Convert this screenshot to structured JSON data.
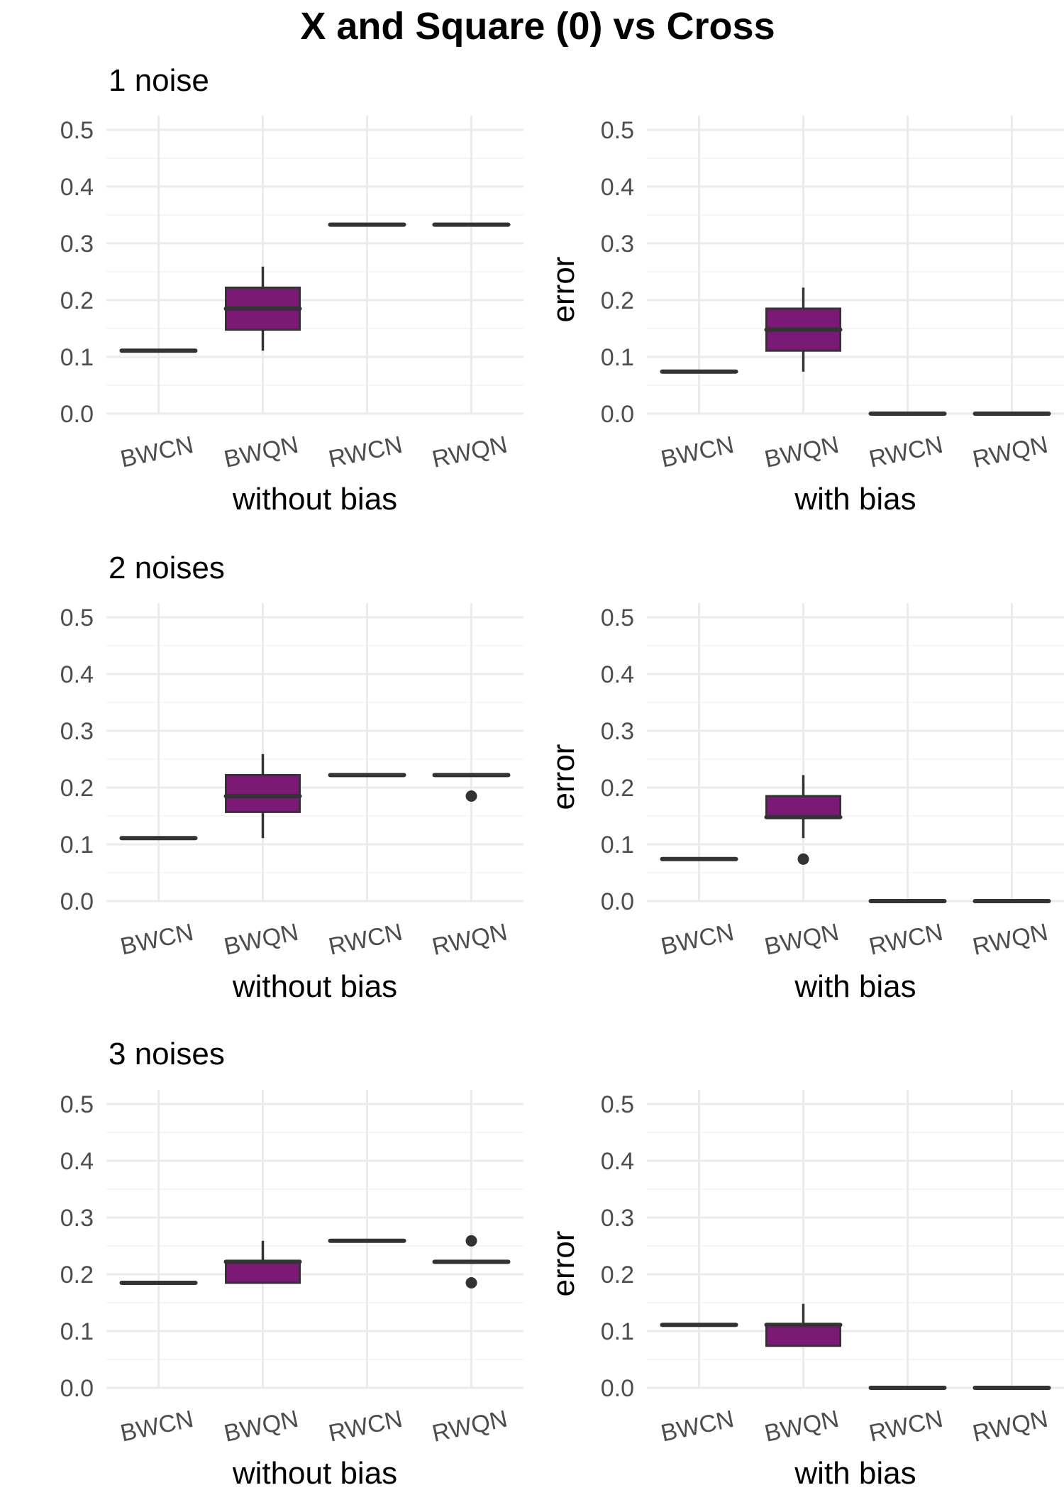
{
  "title": "X and Square (0) vs Cross",
  "colors": {
    "box_fill": "#7b1a74",
    "line": "#333333",
    "grid": "#ebebeb"
  },
  "chart_data": [
    {
      "type": "box",
      "row_title": "1 noise",
      "xlabel": "without bias",
      "ylabel": "",
      "ylim": [
        0,
        0.5
      ],
      "yticks": [
        "0.0",
        "0.1",
        "0.2",
        "0.3",
        "0.4",
        "0.5"
      ],
      "categories": [
        "BWCN",
        "BWQN",
        "RWCN",
        "RWQN"
      ],
      "boxes": [
        {
          "category": "BWCN",
          "min": 0.111,
          "q1": 0.111,
          "median": 0.111,
          "q3": 0.111,
          "max": 0.111,
          "outliers": []
        },
        {
          "category": "BWQN",
          "min": 0.111,
          "q1": 0.148,
          "median": 0.185,
          "q3": 0.222,
          "max": 0.259,
          "outliers": []
        },
        {
          "category": "RWCN",
          "min": 0.333,
          "q1": 0.333,
          "median": 0.333,
          "q3": 0.333,
          "max": 0.333,
          "outliers": []
        },
        {
          "category": "RWQN",
          "min": 0.333,
          "q1": 0.333,
          "median": 0.333,
          "q3": 0.333,
          "max": 0.333,
          "outliers": []
        }
      ]
    },
    {
      "type": "box",
      "row_title": "",
      "xlabel": "with bias",
      "ylabel": "error",
      "ylim": [
        0,
        0.5
      ],
      "yticks": [
        "0.0",
        "0.1",
        "0.2",
        "0.3",
        "0.4",
        "0.5"
      ],
      "categories": [
        "BWCN",
        "BWQN",
        "RWCN",
        "RWQN"
      ],
      "boxes": [
        {
          "category": "BWCN",
          "min": 0.074,
          "q1": 0.074,
          "median": 0.074,
          "q3": 0.074,
          "max": 0.074,
          "outliers": []
        },
        {
          "category": "BWQN",
          "min": 0.074,
          "q1": 0.111,
          "median": 0.148,
          "q3": 0.185,
          "max": 0.222,
          "outliers": []
        },
        {
          "category": "RWCN",
          "min": 0.0,
          "q1": 0.0,
          "median": 0.0,
          "q3": 0.0,
          "max": 0.0,
          "outliers": []
        },
        {
          "category": "RWQN",
          "min": 0.0,
          "q1": 0.0,
          "median": 0.0,
          "q3": 0.0,
          "max": 0.0,
          "outliers": []
        }
      ]
    },
    {
      "type": "box",
      "row_title": "2 noises",
      "xlabel": "without bias",
      "ylabel": "",
      "ylim": [
        0,
        0.5
      ],
      "yticks": [
        "0.0",
        "0.1",
        "0.2",
        "0.3",
        "0.4",
        "0.5"
      ],
      "categories": [
        "BWCN",
        "BWQN",
        "RWCN",
        "RWQN"
      ],
      "boxes": [
        {
          "category": "BWCN",
          "min": 0.111,
          "q1": 0.111,
          "median": 0.111,
          "q3": 0.111,
          "max": 0.111,
          "outliers": []
        },
        {
          "category": "BWQN",
          "min": 0.111,
          "q1": 0.157,
          "median": 0.185,
          "q3": 0.222,
          "max": 0.259,
          "outliers": []
        },
        {
          "category": "RWCN",
          "min": 0.222,
          "q1": 0.222,
          "median": 0.222,
          "q3": 0.222,
          "max": 0.222,
          "outliers": []
        },
        {
          "category": "RWQN",
          "min": 0.222,
          "q1": 0.222,
          "median": 0.222,
          "q3": 0.222,
          "max": 0.222,
          "outliers": [
            0.185
          ]
        }
      ]
    },
    {
      "type": "box",
      "row_title": "",
      "xlabel": "with bias",
      "ylabel": "error",
      "ylim": [
        0,
        0.5
      ],
      "yticks": [
        "0.0",
        "0.1",
        "0.2",
        "0.3",
        "0.4",
        "0.5"
      ],
      "categories": [
        "BWCN",
        "BWQN",
        "RWCN",
        "RWQN"
      ],
      "boxes": [
        {
          "category": "BWCN",
          "min": 0.074,
          "q1": 0.074,
          "median": 0.074,
          "q3": 0.074,
          "max": 0.074,
          "outliers": []
        },
        {
          "category": "BWQN",
          "min": 0.111,
          "q1": 0.148,
          "median": 0.148,
          "q3": 0.185,
          "max": 0.222,
          "outliers": [
            0.074
          ]
        },
        {
          "category": "RWCN",
          "min": 0.0,
          "q1": 0.0,
          "median": 0.0,
          "q3": 0.0,
          "max": 0.0,
          "outliers": []
        },
        {
          "category": "RWQN",
          "min": 0.0,
          "q1": 0.0,
          "median": 0.0,
          "q3": 0.0,
          "max": 0.0,
          "outliers": []
        }
      ]
    },
    {
      "type": "box",
      "row_title": "3 noises",
      "xlabel": "without bias",
      "ylabel": "",
      "ylim": [
        0,
        0.5
      ],
      "yticks": [
        "0.0",
        "0.1",
        "0.2",
        "0.3",
        "0.4",
        "0.5"
      ],
      "categories": [
        "BWCN",
        "BWQN",
        "RWCN",
        "RWQN"
      ],
      "boxes": [
        {
          "category": "BWCN",
          "min": 0.185,
          "q1": 0.185,
          "median": 0.185,
          "q3": 0.185,
          "max": 0.185,
          "outliers": []
        },
        {
          "category": "BWQN",
          "min": 0.185,
          "q1": 0.185,
          "median": 0.222,
          "q3": 0.222,
          "max": 0.259,
          "outliers": []
        },
        {
          "category": "RWCN",
          "min": 0.259,
          "q1": 0.259,
          "median": 0.259,
          "q3": 0.259,
          "max": 0.259,
          "outliers": []
        },
        {
          "category": "RWQN",
          "min": 0.222,
          "q1": 0.222,
          "median": 0.222,
          "q3": 0.222,
          "max": 0.222,
          "outliers": [
            0.259,
            0.185
          ]
        }
      ]
    },
    {
      "type": "box",
      "row_title": "",
      "xlabel": "with bias",
      "ylabel": "error",
      "ylim": [
        0,
        0.5
      ],
      "yticks": [
        "0.0",
        "0.1",
        "0.2",
        "0.3",
        "0.4",
        "0.5"
      ],
      "categories": [
        "BWCN",
        "BWQN",
        "RWCN",
        "RWQN"
      ],
      "boxes": [
        {
          "category": "BWCN",
          "min": 0.111,
          "q1": 0.111,
          "median": 0.111,
          "q3": 0.111,
          "max": 0.111,
          "outliers": []
        },
        {
          "category": "BWQN",
          "min": 0.074,
          "q1": 0.074,
          "median": 0.111,
          "q3": 0.111,
          "max": 0.148,
          "outliers": []
        },
        {
          "category": "RWCN",
          "min": 0.0,
          "q1": 0.0,
          "median": 0.0,
          "q3": 0.0,
          "max": 0.0,
          "outliers": []
        },
        {
          "category": "RWQN",
          "min": 0.0,
          "q1": 0.0,
          "median": 0.0,
          "q3": 0.0,
          "max": 0.0,
          "outliers": []
        }
      ]
    }
  ]
}
